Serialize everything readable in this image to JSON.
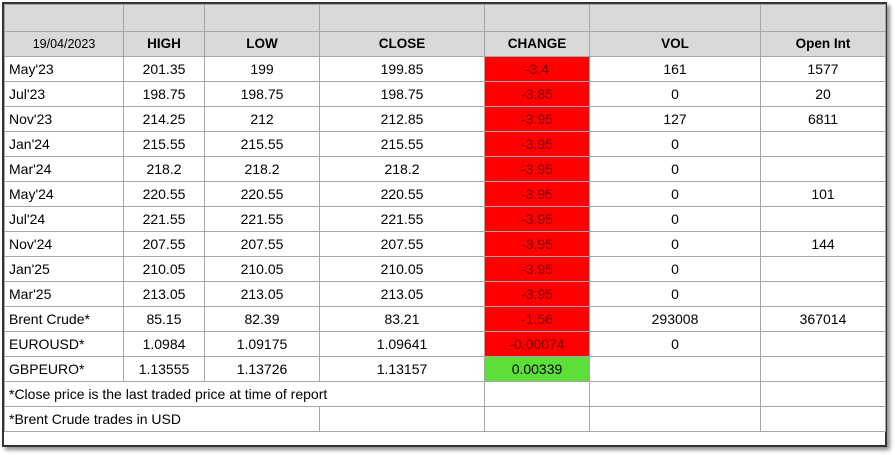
{
  "headers": {
    "date": "19/04/2023",
    "high": "HIGH",
    "low": "LOW",
    "close": "CLOSE",
    "change": "CHANGE",
    "vol": "VOL",
    "open_int": "Open Int"
  },
  "rows": [
    {
      "name": "May'23",
      "high": "201.35",
      "low": "199",
      "close": "199.85",
      "change": "-3.4",
      "vol": "161",
      "open_int": "1577"
    },
    {
      "name": "Jul'23",
      "high": "198.75",
      "low": "198.75",
      "close": "198.75",
      "change": "-3.85",
      "vol": "0",
      "open_int": "20"
    },
    {
      "name": "Nov'23",
      "high": "214.25",
      "low": "212",
      "close": "212.85",
      "change": "-3.95",
      "vol": "127",
      "open_int": "6811"
    },
    {
      "name": "Jan'24",
      "high": "215.55",
      "low": "215.55",
      "close": "215.55",
      "change": "-3.95",
      "vol": "0",
      "open_int": ""
    },
    {
      "name": "Mar'24",
      "high": "218.2",
      "low": "218.2",
      "close": "218.2",
      "change": "-3.95",
      "vol": "0",
      "open_int": ""
    },
    {
      "name": "May'24",
      "high": "220.55",
      "low": "220.55",
      "close": "220.55",
      "change": "-3.95",
      "vol": "0",
      "open_int": "101"
    },
    {
      "name": "Jul'24",
      "high": "221.55",
      "low": "221.55",
      "close": "221.55",
      "change": "-3.95",
      "vol": "0",
      "open_int": ""
    },
    {
      "name": "Nov'24",
      "high": "207.55",
      "low": "207.55",
      "close": "207.55",
      "change": "-3.95",
      "vol": "0",
      "open_int": "144"
    },
    {
      "name": "Jan'25",
      "high": "210.05",
      "low": "210.05",
      "close": "210.05",
      "change": "-3.95",
      "vol": "0",
      "open_int": ""
    },
    {
      "name": "Mar'25",
      "high": "213.05",
      "low": "213.05",
      "close": "213.05",
      "change": "-3.95",
      "vol": "0",
      "open_int": ""
    },
    {
      "name": "Brent Crude*",
      "high": "85.15",
      "low": "82.39",
      "close": "83.21",
      "change": "-1.56",
      "vol": "293008",
      "open_int": "367014"
    },
    {
      "name": "EUROUSD*",
      "high": "1.0984",
      "low": "1.09175",
      "close": "1.09641",
      "change": "-0.00074",
      "vol": "0",
      "open_int": ""
    },
    {
      "name": "GBPEURO*",
      "high": "1.13555",
      "low": "1.13726",
      "close": "1.13157",
      "change": "0.00339",
      "vol": "",
      "open_int": ""
    }
  ],
  "notes": [
    "*Close price is the last traded price at time of report",
    "*Brent Crude trades in USD"
  ],
  "colors": {
    "negative_change_bg": "#ff0000",
    "positive_change_bg": "#5ddf3a",
    "header_bg": "#d9d9d9"
  }
}
